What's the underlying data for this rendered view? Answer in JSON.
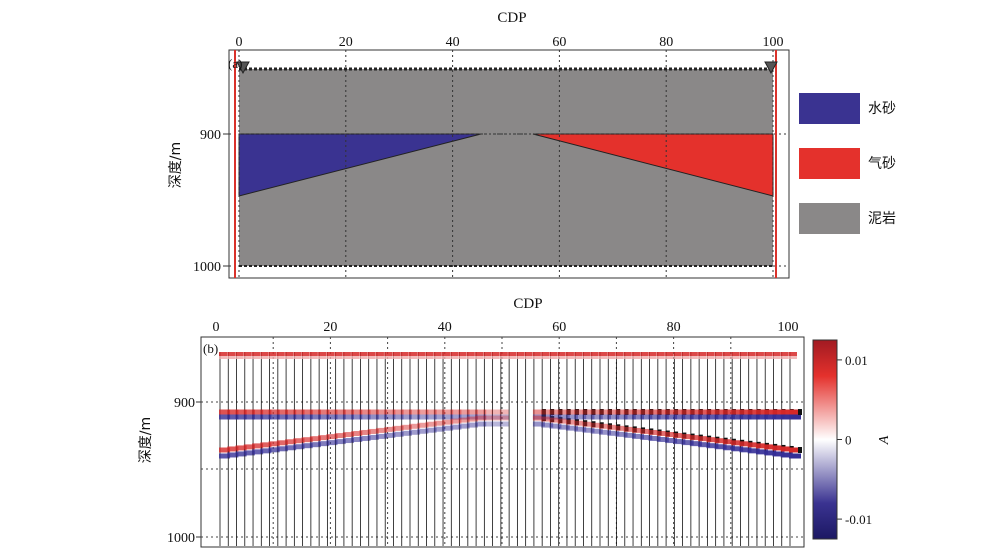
{
  "panel_a": {
    "label": "(a)",
    "top_axis_title": "CDP",
    "x_ticks": [
      0,
      20,
      40,
      60,
      80,
      100
    ],
    "y_axis_title": "深度/m",
    "y_ticks": [
      900,
      1000
    ],
    "legend": [
      {
        "label": "水砂",
        "color": "#3a3391"
      },
      {
        "label": "气砂",
        "color": "#e4312c"
      },
      {
        "label": "泥岩",
        "color": "#8a8888"
      }
    ]
  },
  "panel_b": {
    "label": "(b)",
    "top_axis_title": "CDP",
    "x_ticks": [
      0,
      20,
      40,
      60,
      80,
      100
    ],
    "y_axis_title": "深度/m",
    "y_ticks": [
      900,
      1000
    ],
    "colorbar": {
      "title": "A",
      "ticks": [
        {
          "value": 0.01,
          "label": "0.01"
        },
        {
          "value": 0,
          "label": "0"
        },
        {
          "value": -0.01,
          "label": "-0.01"
        }
      ],
      "range": [
        -0.0125,
        0.0125
      ]
    }
  },
  "colors": {
    "background": "#8a8888",
    "water_sand": "#3a3391",
    "gas_sand": "#e4312c",
    "well_line": "#d9322b"
  }
}
